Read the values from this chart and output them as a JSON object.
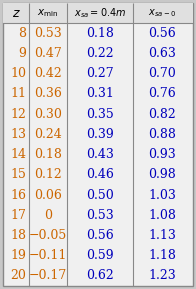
{
  "z_values": [
    8,
    9,
    10,
    11,
    12,
    13,
    14,
    15,
    16,
    17,
    18,
    19,
    20
  ],
  "x_min": [
    "0.53",
    "0.47",
    "0.42",
    "0.36",
    "0.30",
    "0.24",
    "0.18",
    "0.12",
    "0.06",
    "0",
    "−0.05",
    "−0.11",
    "−0.17"
  ],
  "x_sa_04m": [
    "0.18",
    "0.22",
    "0.27",
    "0.31",
    "0.35",
    "0.39",
    "0.43",
    "0.46",
    "0.50",
    "0.53",
    "0.56",
    "0.59",
    "0.62"
  ],
  "x_sa_0": [
    "0.56",
    "0.63",
    "0.70",
    "0.76",
    "0.82",
    "0.88",
    "0.93",
    "0.98",
    "1.03",
    "1.08",
    "1.13",
    "1.18",
    "1.23"
  ],
  "bg_color": "#f0f0f0",
  "header_bg": "#e0e0e0",
  "text_color_orange": "#cc6600",
  "text_color_blue": "#0000bb",
  "border_color": "#888888",
  "fig_bg": "#c8c8c8",
  "header_text_color": "#000000"
}
